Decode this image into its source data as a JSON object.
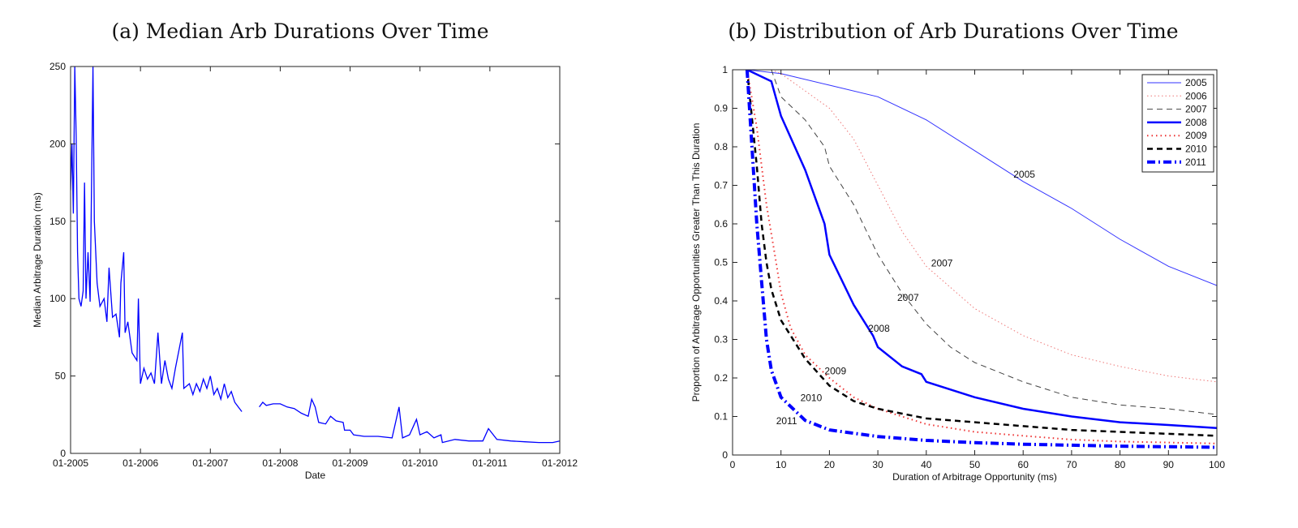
{
  "chart_data": [
    {
      "type": "line",
      "title": "(a) Median Arb Durations Over Time",
      "xlabel": "Date",
      "ylabel": "Median Arbitrage Duration (ms)",
      "xlim": [
        2005,
        2012
      ],
      "ylim": [
        0,
        250
      ],
      "xticks": [
        2005,
        2006,
        2007,
        2008,
        2009,
        2010,
        2011,
        2012
      ],
      "xtick_labels": [
        "01-2005",
        "01-2006",
        "01-2007",
        "01-2008",
        "01-2009",
        "01-2010",
        "01-2011",
        "01-2012"
      ],
      "yticks": [
        0,
        50,
        100,
        150,
        200,
        250
      ],
      "color": "#0000ff",
      "series": [
        {
          "name": "median",
          "x": [
            2005.0,
            2005.02,
            2005.04,
            2005.06,
            2005.08,
            2005.1,
            2005.12,
            2005.15,
            2005.18,
            2005.2,
            2005.22,
            2005.25,
            2005.28,
            2005.32,
            2005.34,
            2005.38,
            2005.42,
            2005.48,
            2005.52,
            2005.55,
            2005.6,
            2005.65,
            2005.7,
            2005.72,
            2005.76,
            2005.78,
            2005.82,
            2005.88,
            2005.95,
            2005.97,
            2006.0,
            2006.05,
            2006.1,
            2006.15,
            2006.2,
            2006.25,
            2006.3,
            2006.35,
            2006.4,
            2006.45,
            2006.5,
            2006.6,
            2006.62,
            2006.7,
            2006.75,
            2006.8,
            2006.85,
            2006.9,
            2006.95,
            2007.0,
            2007.05,
            2007.1,
            2007.15,
            2007.2,
            2007.25,
            2007.3,
            2007.35,
            2007.4,
            2007.45,
            null,
            2007.7,
            2007.75,
            2007.8,
            2007.9,
            2008.0,
            2008.1,
            2008.2,
            2008.3,
            2008.4,
            2008.45,
            2008.5,
            2008.55,
            2008.65,
            2008.72,
            2008.8,
            2008.9,
            2008.92,
            2009.0,
            2009.05,
            2009.2,
            2009.4,
            2009.6,
            2009.7,
            2009.75,
            2009.85,
            2009.95,
            2010.0,
            2010.1,
            2010.2,
            2010.3,
            2010.32,
            2010.5,
            2010.7,
            2010.9,
            2010.98,
            2011.1,
            2011.3,
            2011.5,
            2011.7,
            2011.9,
            2012.0
          ],
          "y": [
            170,
            200,
            155,
            250,
            205,
            130,
            100,
            95,
            105,
            175,
            100,
            130,
            98,
            250,
            150,
            110,
            95,
            100,
            85,
            120,
            88,
            90,
            75,
            110,
            130,
            78,
            85,
            65,
            60,
            100,
            45,
            55,
            48,
            52,
            45,
            78,
            45,
            60,
            48,
            42,
            55,
            78,
            42,
            45,
            38,
            45,
            40,
            48,
            42,
            50,
            38,
            42,
            35,
            45,
            36,
            40,
            33,
            30,
            27,
            null,
            30,
            33,
            31,
            32,
            32,
            30,
            29,
            26,
            24,
            35,
            30,
            20,
            19,
            24,
            21,
            20,
            15,
            15,
            12,
            11,
            11,
            10,
            30,
            10,
            12,
            22,
            12,
            14,
            10,
            12,
            7,
            9,
            8,
            8,
            16,
            9,
            8,
            7.5,
            7,
            7,
            8
          ]
        }
      ]
    },
    {
      "type": "line",
      "title": "(b) Distribution of Arb Durations Over Time",
      "xlabel": "Duration of Arbitrage Opportunity (ms)",
      "ylabel": "Proportion of Arbitrage Opportunities Greater Than This Duration",
      "xlim": [
        0,
        100
      ],
      "ylim": [
        0,
        1
      ],
      "xticks": [
        0,
        10,
        20,
        30,
        40,
        50,
        60,
        70,
        80,
        90,
        100
      ],
      "yticks": [
        0,
        0.1,
        0.2,
        0.3,
        0.4,
        0.5,
        0.6,
        0.7,
        0.8,
        0.9,
        1
      ],
      "legend_position": "top-right",
      "series": [
        {
          "name": "2005",
          "color": "#3333ff",
          "style": "solid-thin",
          "x": [
            3,
            10,
            20,
            30,
            40,
            50,
            60,
            70,
            80,
            90,
            100
          ],
          "y": [
            1,
            0.99,
            0.96,
            0.93,
            0.87,
            0.79,
            0.71,
            0.64,
            0.56,
            0.49,
            0.44
          ]
        },
        {
          "name": "2006",
          "color": "#ee7777",
          "style": "dotted-thin",
          "x": [
            8,
            10,
            20,
            25,
            30,
            35,
            40,
            50,
            60,
            70,
            80,
            90,
            100
          ],
          "y": [
            1,
            0.99,
            0.9,
            0.82,
            0.7,
            0.58,
            0.49,
            0.38,
            0.31,
            0.26,
            0.23,
            0.205,
            0.19
          ]
        },
        {
          "name": "2007",
          "color": "#444444",
          "style": "dashed-thin",
          "x": [
            8,
            10,
            15,
            19,
            20,
            25,
            30,
            35,
            40,
            45,
            50,
            60,
            70,
            80,
            90,
            100
          ],
          "y": [
            1,
            0.93,
            0.87,
            0.8,
            0.75,
            0.65,
            0.52,
            0.42,
            0.34,
            0.28,
            0.24,
            0.19,
            0.15,
            0.13,
            0.12,
            0.105
          ]
        },
        {
          "name": "2008",
          "color": "#0000ff",
          "style": "solid-thick",
          "x": [
            3,
            8,
            10,
            15,
            19,
            20,
            25,
            29,
            30,
            35,
            39,
            40,
            50,
            60,
            70,
            80,
            90,
            100
          ],
          "y": [
            1,
            0.97,
            0.88,
            0.74,
            0.6,
            0.52,
            0.39,
            0.31,
            0.28,
            0.23,
            0.21,
            0.19,
            0.15,
            0.12,
            0.1,
            0.085,
            0.078,
            0.07
          ]
        },
        {
          "name": "2009",
          "color": "#ee3333",
          "style": "dotted-thick",
          "x": [
            3,
            5,
            7,
            9,
            10,
            12,
            15,
            20,
            25,
            30,
            40,
            50,
            60,
            70,
            80,
            100
          ],
          "y": [
            1,
            0.85,
            0.65,
            0.5,
            0.42,
            0.33,
            0.26,
            0.2,
            0.15,
            0.12,
            0.08,
            0.06,
            0.05,
            0.04,
            0.035,
            0.03
          ]
        },
        {
          "name": "2010",
          "color": "#000000",
          "style": "dashed-thick",
          "x": [
            3,
            5,
            6,
            7,
            8,
            10,
            15,
            20,
            25,
            30,
            40,
            50,
            60,
            70,
            80,
            90,
            100
          ],
          "y": [
            1,
            0.75,
            0.6,
            0.5,
            0.43,
            0.35,
            0.25,
            0.18,
            0.14,
            0.12,
            0.095,
            0.085,
            0.075,
            0.065,
            0.06,
            0.055,
            0.05
          ]
        },
        {
          "name": "2011",
          "color": "#0000ff",
          "style": "dashdot-thick",
          "x": [
            3,
            4,
            5,
            6,
            7,
            8,
            10,
            15,
            20,
            30,
            40,
            50,
            60,
            80,
            100
          ],
          "y": [
            1,
            0.8,
            0.6,
            0.45,
            0.3,
            0.22,
            0.15,
            0.09,
            0.065,
            0.048,
            0.038,
            0.032,
            0.028,
            0.023,
            0.02
          ]
        }
      ],
      "annotations": [
        {
          "text": "2005",
          "x": 58,
          "y": 0.72
        },
        {
          "text": "2007",
          "x": 41,
          "y": 0.49
        },
        {
          "text": "2007",
          "x": 34,
          "y": 0.4
        },
        {
          "text": "2008",
          "x": 28,
          "y": 0.32
        },
        {
          "text": "2009",
          "x": 19,
          "y": 0.21
        },
        {
          "text": "2010",
          "x": 14,
          "y": 0.14
        },
        {
          "text": "2011",
          "x": 9,
          "y": 0.08
        }
      ]
    }
  ]
}
